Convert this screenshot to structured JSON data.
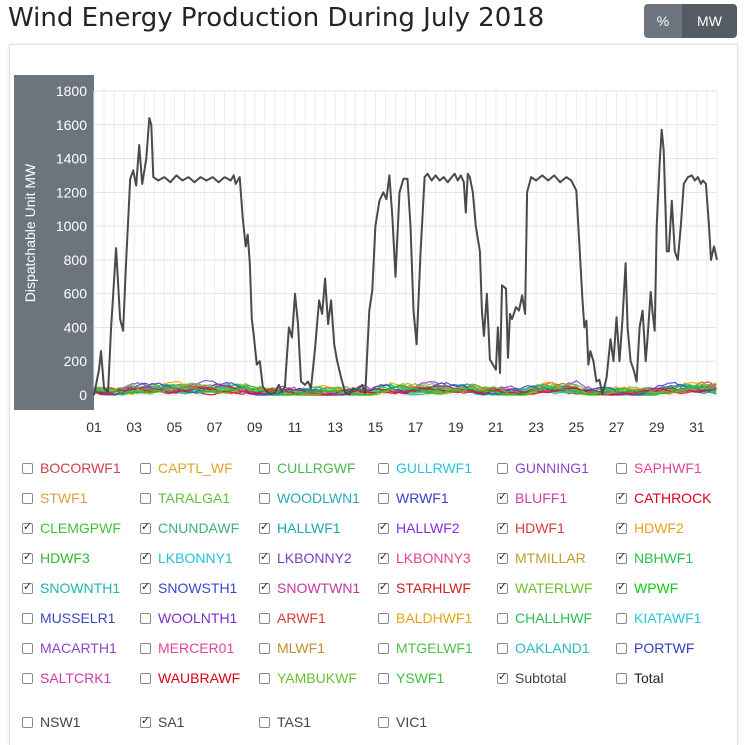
{
  "page_title": "Wind Energy Production During July 2018",
  "unit_toggle": {
    "percent_label": "%",
    "mw_label": "MW",
    "selected": "MW"
  },
  "chart_data": {
    "type": "line",
    "ylabel": "Dispatchable Unit MW",
    "ylim": [
      0,
      1800
    ],
    "yticks": [
      0,
      200,
      400,
      600,
      800,
      1000,
      1200,
      1400,
      1600,
      1800
    ],
    "xlim": [
      0,
      31
    ],
    "xticks": [
      {
        "label": "01",
        "x": 0
      },
      {
        "label": "03",
        "x": 2
      },
      {
        "label": "05",
        "x": 4
      },
      {
        "label": "07",
        "x": 6
      },
      {
        "label": "09",
        "x": 8
      },
      {
        "label": "11",
        "x": 10
      },
      {
        "label": "13",
        "x": 12
      },
      {
        "label": "15",
        "x": 14
      },
      {
        "label": "17",
        "x": 16
      },
      {
        "label": "19",
        "x": 18
      },
      {
        "label": "21",
        "x": 20
      },
      {
        "label": "23",
        "x": 22
      },
      {
        "label": "25",
        "x": 24
      },
      {
        "label": "27",
        "x": 26
      },
      {
        "label": "29",
        "x": 28
      },
      {
        "label": "31",
        "x": 30
      }
    ],
    "grid": true,
    "subtotal": {
      "name": "Subtotal",
      "color": "#4a4a4a",
      "points": [
        [
          0,
          0
        ],
        [
          0.25,
          150
        ],
        [
          0.35,
          260
        ],
        [
          0.5,
          40
        ],
        [
          0.7,
          20
        ],
        [
          0.85,
          400
        ],
        [
          1.1,
          870
        ],
        [
          1.3,
          450
        ],
        [
          1.45,
          380
        ],
        [
          1.6,
          800
        ],
        [
          1.8,
          1280
        ],
        [
          1.95,
          1330
        ],
        [
          2.1,
          1240
        ],
        [
          2.25,
          1480
        ],
        [
          2.4,
          1250
        ],
        [
          2.6,
          1400
        ],
        [
          2.75,
          1640
        ],
        [
          2.85,
          1600
        ],
        [
          2.95,
          1290
        ],
        [
          3.2,
          1270
        ],
        [
          3.5,
          1290
        ],
        [
          3.8,
          1260
        ],
        [
          4.1,
          1300
        ],
        [
          4.4,
          1270
        ],
        [
          4.7,
          1290
        ],
        [
          5.0,
          1260
        ],
        [
          5.3,
          1290
        ],
        [
          5.6,
          1270
        ],
        [
          5.9,
          1290
        ],
        [
          6.2,
          1260
        ],
        [
          6.5,
          1290
        ],
        [
          6.8,
          1270
        ],
        [
          6.95,
          1300
        ],
        [
          7.05,
          1250
        ],
        [
          7.25,
          1290
        ],
        [
          7.4,
          1050
        ],
        [
          7.55,
          880
        ],
        [
          7.65,
          950
        ],
        [
          7.75,
          780
        ],
        [
          7.85,
          450
        ],
        [
          7.95,
          350
        ],
        [
          8.1,
          180
        ],
        [
          8.25,
          200
        ],
        [
          8.4,
          50
        ],
        [
          8.6,
          20
        ],
        [
          8.8,
          5
        ],
        [
          9.0,
          15
        ],
        [
          9.2,
          60
        ],
        [
          9.35,
          20
        ],
        [
          9.5,
          50
        ],
        [
          9.7,
          400
        ],
        [
          9.85,
          340
        ],
        [
          10.0,
          600
        ],
        [
          10.15,
          420
        ],
        [
          10.3,
          80
        ],
        [
          10.5,
          60
        ],
        [
          10.65,
          80
        ],
        [
          10.8,
          40
        ],
        [
          11.0,
          280
        ],
        [
          11.2,
          560
        ],
        [
          11.35,
          480
        ],
        [
          11.5,
          690
        ],
        [
          11.65,
          420
        ],
        [
          11.8,
          560
        ],
        [
          11.95,
          300
        ],
        [
          12.1,
          200
        ],
        [
          12.3,
          100
        ],
        [
          12.5,
          15
        ],
        [
          12.7,
          5
        ],
        [
          12.9,
          40
        ],
        [
          13.1,
          30
        ],
        [
          13.35,
          60
        ],
        [
          13.5,
          10
        ],
        [
          13.7,
          500
        ],
        [
          13.85,
          620
        ],
        [
          14.0,
          1000
        ],
        [
          14.2,
          1150
        ],
        [
          14.4,
          1200
        ],
        [
          14.55,
          1160
        ],
        [
          14.7,
          1300
        ],
        [
          14.85,
          1050
        ],
        [
          15.0,
          700
        ],
        [
          15.2,
          1200
        ],
        [
          15.4,
          1280
        ],
        [
          15.6,
          1280
        ],
        [
          15.75,
          1000
        ],
        [
          15.9,
          500
        ],
        [
          16.05,
          300
        ],
        [
          16.25,
          850
        ],
        [
          16.45,
          1290
        ],
        [
          16.6,
          1310
        ],
        [
          16.8,
          1270
        ],
        [
          17.0,
          1300
        ],
        [
          17.2,
          1270
        ],
        [
          17.4,
          1290
        ],
        [
          17.6,
          1260
        ],
        [
          17.8,
          1290
        ],
        [
          17.95,
          1310
        ],
        [
          18.1,
          1270
        ],
        [
          18.25,
          1300
        ],
        [
          18.4,
          1260
        ],
        [
          18.5,
          1080
        ],
        [
          18.6,
          1310
        ],
        [
          18.7,
          1290
        ],
        [
          18.85,
          1200
        ],
        [
          19.0,
          1000
        ],
        [
          19.2,
          850
        ],
        [
          19.3,
          500
        ],
        [
          19.4,
          350
        ],
        [
          19.55,
          600
        ],
        [
          19.7,
          210
        ],
        [
          19.85,
          180
        ],
        [
          20.0,
          150
        ],
        [
          20.1,
          400
        ],
        [
          20.2,
          130
        ],
        [
          20.3,
          650
        ],
        [
          20.5,
          630
        ],
        [
          20.6,
          220
        ],
        [
          20.7,
          480
        ],
        [
          20.8,
          450
        ],
        [
          21.0,
          520
        ],
        [
          21.15,
          500
        ],
        [
          21.3,
          590
        ],
        [
          21.45,
          480
        ],
        [
          21.55,
          1200
        ],
        [
          21.75,
          1290
        ],
        [
          22.0,
          1270
        ],
        [
          22.3,
          1300
        ],
        [
          22.6,
          1270
        ],
        [
          22.9,
          1300
        ],
        [
          23.2,
          1260
        ],
        [
          23.5,
          1290
        ],
        [
          23.75,
          1270
        ],
        [
          24.0,
          1210
        ],
        [
          24.15,
          900
        ],
        [
          24.3,
          570
        ],
        [
          24.4,
          400
        ],
        [
          24.5,
          440
        ],
        [
          24.6,
          180
        ],
        [
          24.7,
          260
        ],
        [
          24.85,
          200
        ],
        [
          25.0,
          80
        ],
        [
          25.15,
          90
        ],
        [
          25.3,
          5
        ],
        [
          25.5,
          100
        ],
        [
          25.7,
          330
        ],
        [
          25.85,
          200
        ],
        [
          26.0,
          460
        ],
        [
          26.15,
          200
        ],
        [
          26.3,
          450
        ],
        [
          26.45,
          780
        ],
        [
          26.55,
          400
        ],
        [
          26.7,
          200
        ],
        [
          26.85,
          150
        ],
        [
          27.0,
          80
        ],
        [
          27.15,
          400
        ],
        [
          27.3,
          500
        ],
        [
          27.45,
          200
        ],
        [
          27.55,
          350
        ],
        [
          27.7,
          610
        ],
        [
          27.8,
          480
        ],
        [
          27.9,
          380
        ],
        [
          28.0,
          1000
        ],
        [
          28.15,
          1380
        ],
        [
          28.25,
          1570
        ],
        [
          28.35,
          1450
        ],
        [
          28.5,
          850
        ],
        [
          28.6,
          850
        ],
        [
          28.75,
          1150
        ],
        [
          28.9,
          850
        ],
        [
          29.05,
          800
        ],
        [
          29.2,
          1000
        ],
        [
          29.35,
          1250
        ],
        [
          29.55,
          1290
        ],
        [
          29.75,
          1300
        ],
        [
          29.9,
          1270
        ],
        [
          30.05,
          1290
        ],
        [
          30.2,
          1250
        ],
        [
          30.3,
          1270
        ],
        [
          30.45,
          1250
        ],
        [
          30.6,
          1000
        ],
        [
          30.7,
          800
        ],
        [
          30.85,
          880
        ],
        [
          31.0,
          800
        ]
      ]
    },
    "units": [
      {
        "name": "BLUFF1",
        "color": "#e8453c",
        "seed": 1,
        "level": 35,
        "amp": 30
      },
      {
        "name": "CATHROCK",
        "color": "#d9001b",
        "seed": 2,
        "level": 20,
        "amp": 20
      },
      {
        "name": "CLEMGPWF",
        "color": "#3fbf3f",
        "seed": 3,
        "level": 25,
        "amp": 25
      },
      {
        "name": "CNUNDAWF",
        "color": "#2fa84f",
        "seed": 4,
        "level": 30,
        "amp": 25
      },
      {
        "name": "HALLWF1",
        "color": "#7ab648",
        "seed": 5,
        "level": 40,
        "amp": 35
      },
      {
        "name": "HALLWF2",
        "color": "#9b30d0",
        "seed": 6,
        "level": 35,
        "amp": 30
      },
      {
        "name": "HDWF1",
        "color": "#e0422f",
        "seed": 7,
        "level": 45,
        "amp": 40
      },
      {
        "name": "HDWF2",
        "color": "#f0a500",
        "seed": 8,
        "level": 45,
        "amp": 40
      },
      {
        "name": "HDWF3",
        "color": "#2eb82e",
        "seed": 9,
        "level": 40,
        "amp": 35
      },
      {
        "name": "LKBONNY1",
        "color": "#1fc7d6",
        "seed": 10,
        "level": 25,
        "amp": 20
      },
      {
        "name": "LKBONNY2",
        "color": "#8a3cc7",
        "seed": 11,
        "level": 50,
        "amp": 45
      },
      {
        "name": "LKBONNY3",
        "color": "#e83e8c",
        "seed": 12,
        "level": 30,
        "amp": 25
      },
      {
        "name": "MTMILLAR",
        "color": "#c49a2c",
        "seed": 13,
        "level": 30,
        "amp": 25
      },
      {
        "name": "NBHWF1",
        "color": "#22c55e",
        "seed": 14,
        "level": 40,
        "amp": 35
      },
      {
        "name": "SNOWNTH1",
        "color": "#20b2aa",
        "seed": 15,
        "level": 40,
        "amp": 35
      },
      {
        "name": "SNOWSTH1",
        "color": "#3b44c9",
        "seed": 16,
        "level": 45,
        "amp": 40
      },
      {
        "name": "SNOWTWN1",
        "color": "#c2185b",
        "seed": 17,
        "level": 35,
        "amp": 30
      },
      {
        "name": "STARHLWF",
        "color": "#cc1f1f",
        "seed": 18,
        "level": 25,
        "amp": 25
      },
      {
        "name": "WATERLWF",
        "color": "#6abf2e",
        "seed": 19,
        "level": 45,
        "amp": 40
      },
      {
        "name": "WPWF",
        "color": "#12c912",
        "seed": 20,
        "level": 30,
        "amp": 25
      }
    ]
  },
  "legend": [
    {
      "label": "BOCORWF1",
      "color": "#d23f4e",
      "checked": false
    },
    {
      "label": "CAPTL_WF",
      "color": "#e0a526",
      "checked": false
    },
    {
      "label": "CULLRGWF",
      "color": "#4cb84c",
      "checked": false
    },
    {
      "label": "GULLRWF1",
      "color": "#26c6da",
      "checked": false
    },
    {
      "label": "GUNNING1",
      "color": "#8e44c9",
      "checked": false
    },
    {
      "label": "SAPHWF1",
      "color": "#e0459a",
      "checked": false
    },
    {
      "label": "STWF1",
      "color": "#d9a043",
      "checked": false
    },
    {
      "label": "TARALGA1",
      "color": "#66c23a",
      "checked": false
    },
    {
      "label": "WOODLWN1",
      "color": "#2aa8b8",
      "checked": false
    },
    {
      "label": "WRWF1",
      "color": "#3c3cc8",
      "checked": false
    },
    {
      "label": "BLUFF1",
      "color": "#cf3ab0",
      "checked": true
    },
    {
      "label": "CATHROCK",
      "color": "#d9001b",
      "checked": true
    },
    {
      "label": "CLEMGPWF",
      "color": "#3fbf3f",
      "checked": true
    },
    {
      "label": "CNUNDAWF",
      "color": "#3cb371",
      "checked": true
    },
    {
      "label": "HALLWF1",
      "color": "#1fa2b5",
      "checked": true
    },
    {
      "label": "HALLWF2",
      "color": "#8a2be2",
      "checked": true
    },
    {
      "label": "HDWF1",
      "color": "#d83a3a",
      "checked": true
    },
    {
      "label": "HDWF2",
      "color": "#e8a317",
      "checked": true
    },
    {
      "label": "HDWF3",
      "color": "#2eb82e",
      "checked": true
    },
    {
      "label": "LKBONNY1",
      "color": "#22c1d6",
      "checked": true
    },
    {
      "label": "LKBONNY2",
      "color": "#7d3cc2",
      "checked": true
    },
    {
      "label": "LKBONNY3",
      "color": "#e8408c",
      "checked": true
    },
    {
      "label": "MTMILLAR",
      "color": "#c49a2c",
      "checked": true
    },
    {
      "label": "NBHWF1",
      "color": "#26c14c",
      "checked": true
    },
    {
      "label": "SNOWNTH1",
      "color": "#1fb5b0",
      "checked": true
    },
    {
      "label": "SNOWSTH1",
      "color": "#3b44c9",
      "checked": true
    },
    {
      "label": "SNOWTWN1",
      "color": "#c2379c",
      "checked": true
    },
    {
      "label": "STARHLWF",
      "color": "#cc1f1f",
      "checked": true
    },
    {
      "label": "WATERLWF",
      "color": "#6abf2e",
      "checked": true
    },
    {
      "label": "WPWF",
      "color": "#12c912",
      "checked": true
    },
    {
      "label": "MUSSELR1",
      "color": "#3d48b8",
      "checked": false
    },
    {
      "label": "WOOLNTH1",
      "color": "#7b2fc7",
      "checked": false
    },
    {
      "label": "ARWF1",
      "color": "#d23a3a",
      "checked": false
    },
    {
      "label": "BALDHWF1",
      "color": "#e8a317",
      "checked": false
    },
    {
      "label": "CHALLHWF",
      "color": "#2eb85c",
      "checked": false
    },
    {
      "label": "KIATAWF1",
      "color": "#26c6da",
      "checked": false
    },
    {
      "label": "MACARTH1",
      "color": "#8e44c9",
      "checked": false
    },
    {
      "label": "MERCER01",
      "color": "#e0459a",
      "checked": false
    },
    {
      "label": "MLWF1",
      "color": "#c48a2c",
      "checked": false
    },
    {
      "label": "MTGELWF1",
      "color": "#4cc24c",
      "checked": false
    },
    {
      "label": "OAKLAND1",
      "color": "#2ab8c8",
      "checked": false
    },
    {
      "label": "PORTWF",
      "color": "#2f3fc0",
      "checked": false
    },
    {
      "label": "SALTCRK1",
      "color": "#cf3ab0",
      "checked": false
    },
    {
      "label": "WAUBRAWF",
      "color": "#d9001b",
      "checked": false
    },
    {
      "label": "YAMBUKWF",
      "color": "#6abf2e",
      "checked": false
    },
    {
      "label": "YSWF1",
      "color": "#3fbf3f",
      "checked": false
    },
    {
      "label": "Subtotal",
      "color": "#444444",
      "checked": true
    },
    {
      "label": "Total",
      "color": "#222222",
      "checked": false
    }
  ],
  "regions": [
    {
      "label": "NSW1",
      "color": "#444444",
      "checked": false
    },
    {
      "label": "SA1",
      "color": "#444444",
      "checked": true
    },
    {
      "label": "TAS1",
      "color": "#444444",
      "checked": false
    },
    {
      "label": "VIC1",
      "color": "#444444",
      "checked": false
    }
  ]
}
